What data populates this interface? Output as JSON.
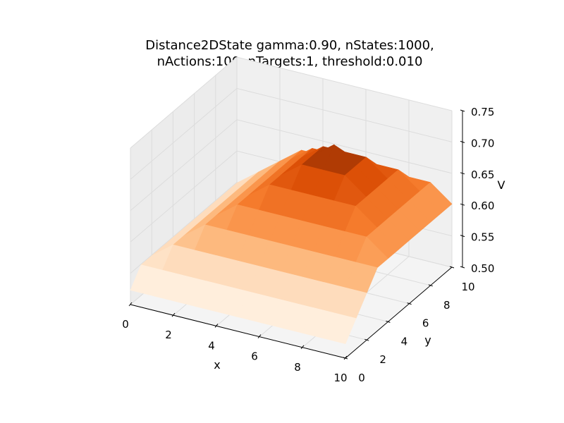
{
  "chart_data": {
    "type": "surface",
    "title_lines": [
      "Distance2DState gamma:0.90, nStates:1000,",
      "nActions:100, nTargets:1, threshold:0.010"
    ],
    "xlabel": "x",
    "ylabel": "y",
    "zlabel": "V",
    "xlim": [
      0,
      10
    ],
    "ylim": [
      0,
      10
    ],
    "zlim": [
      0.5,
      0.75
    ],
    "x_ticks": [
      "0",
      "2",
      "4",
      "6",
      "8",
      "10"
    ],
    "y_ticks": [
      "0",
      "2",
      "4",
      "6",
      "8",
      "10"
    ],
    "z_ticks": [
      "0.50",
      "0.55",
      "0.60",
      "0.65",
      "0.70",
      "0.75"
    ],
    "grid": true,
    "colormap": "Oranges",
    "surface": {
      "x": [
        0,
        1,
        2,
        3,
        4,
        5,
        6,
        7,
        8,
        9,
        10
      ],
      "y": [
        0,
        1,
        2,
        3,
        4,
        5,
        6,
        7,
        8,
        9,
        10
      ],
      "peak": {
        "x": 6,
        "y": 7,
        "z": 0.705
      },
      "slope": 0.026
    }
  }
}
